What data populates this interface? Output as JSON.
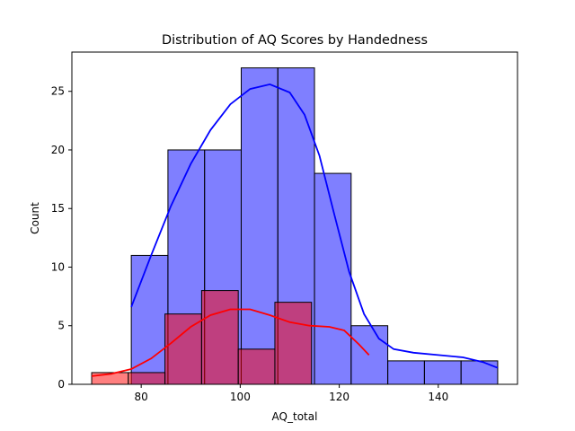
{
  "chart_data": {
    "type": "histogram",
    "title": "Distribution of AQ Scores by Handedness",
    "xlabel": "AQ_total",
    "ylabel": "Count",
    "xlim": [
      66,
      156
    ],
    "ylim": [
      0,
      28.35
    ],
    "xticks": [
      80,
      100,
      120,
      140
    ],
    "yticks": [
      0,
      5,
      10,
      15,
      20,
      25
    ],
    "grid": false,
    "series": [
      {
        "color": "#0000ff",
        "bins": [
          {
            "x0": 78.0,
            "x1": 85.4,
            "count": 11
          },
          {
            "x0": 85.4,
            "x1": 92.8,
            "count": 20
          },
          {
            "x0": 92.8,
            "x1": 100.2,
            "count": 20
          },
          {
            "x0": 100.2,
            "x1": 107.6,
            "count": 27
          },
          {
            "x0": 107.6,
            "x1": 115.0,
            "count": 27
          },
          {
            "x0": 115.0,
            "x1": 122.4,
            "count": 18
          },
          {
            "x0": 122.4,
            "x1": 129.8,
            "count": 5
          },
          {
            "x0": 129.8,
            "x1": 137.2,
            "count": 2
          },
          {
            "x0": 137.2,
            "x1": 144.6,
            "count": 2
          },
          {
            "x0": 144.6,
            "x1": 152.0,
            "count": 2
          }
        ],
        "kde": [
          [
            78,
            6.6
          ],
          [
            82,
            11.0
          ],
          [
            86,
            15.2
          ],
          [
            90,
            18.8
          ],
          [
            94,
            21.7
          ],
          [
            98,
            23.9
          ],
          [
            102,
            25.2
          ],
          [
            106,
            25.6
          ],
          [
            110,
            24.9
          ],
          [
            113,
            23.0
          ],
          [
            116,
            19.5
          ],
          [
            119,
            14.5
          ],
          [
            122,
            9.6
          ],
          [
            125,
            6.0
          ],
          [
            128,
            3.9
          ],
          [
            131,
            3.0
          ],
          [
            135,
            2.7
          ],
          [
            140,
            2.5
          ],
          [
            145,
            2.3
          ],
          [
            149,
            1.9
          ],
          [
            152,
            1.4
          ]
        ]
      },
      {
        "color": "#ff0000",
        "bins": [
          {
            "x0": 70.0,
            "x1": 77.4,
            "count": 1
          },
          {
            "x0": 77.4,
            "x1": 84.8,
            "count": 1
          },
          {
            "x0": 84.8,
            "x1": 92.2,
            "count": 6
          },
          {
            "x0": 92.2,
            "x1": 99.6,
            "count": 8
          },
          {
            "x0": 99.6,
            "x1": 107.0,
            "count": 3
          },
          {
            "x0": 107.0,
            "x1": 114.4,
            "count": 7
          },
          {
            "x0": 114.4,
            "x1": 121.8,
            "count": 0
          },
          {
            "x0": 121.8,
            "x1": 126.0,
            "count": 0
          }
        ],
        "kde": [
          [
            70,
            0.7
          ],
          [
            74,
            0.9
          ],
          [
            78,
            1.3
          ],
          [
            82,
            2.2
          ],
          [
            86,
            3.5
          ],
          [
            90,
            4.9
          ],
          [
            94,
            5.9
          ],
          [
            98,
            6.4
          ],
          [
            102,
            6.4
          ],
          [
            106,
            5.9
          ],
          [
            110,
            5.3
          ],
          [
            114,
            5.0
          ],
          [
            118,
            4.9
          ],
          [
            121,
            4.6
          ],
          [
            124,
            3.4
          ],
          [
            126,
            2.5
          ]
        ]
      }
    ]
  }
}
